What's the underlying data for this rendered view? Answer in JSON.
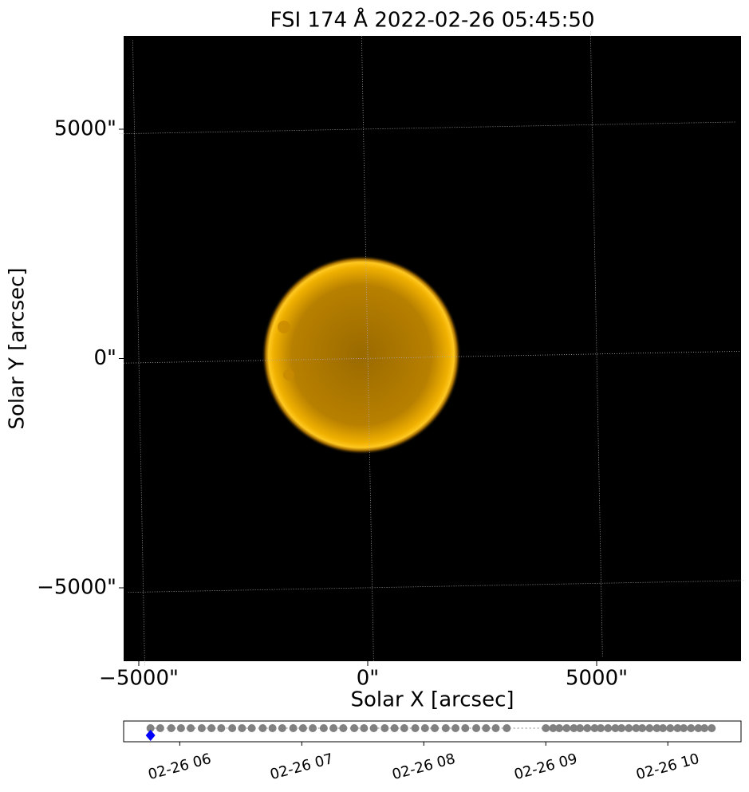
{
  "chart_data": [
    {
      "type": "image",
      "title": "FSI 174 Å 2022-02-26 05:45:50",
      "x_label": "Solar X [arcsec]",
      "y_label": "Solar Y [arcsec]",
      "xlim": [
        -5331,
        8153
      ],
      "ylim": [
        -6600,
        7035
      ],
      "xticks": [
        {
          "value": -5000,
          "label": "−5000\""
        },
        {
          "value": 0,
          "label": "0\""
        },
        {
          "value": 5000,
          "label": "5000\""
        }
      ],
      "yticks": [
        {
          "value": -5000,
          "label": "−5000\""
        },
        {
          "value": 0,
          "label": "0\""
        },
        {
          "value": 5000,
          "label": "5000\""
        }
      ],
      "grid": true
    },
    {
      "type": "scatter",
      "color": "#808080",
      "x": [
        5.76,
        5.84,
        5.93,
        6.01,
        6.09,
        6.18,
        6.26,
        6.34,
        6.43,
        6.51,
        6.59,
        6.68,
        6.76,
        6.84,
        6.93,
        7.01,
        7.09,
        7.18,
        7.26,
        7.34,
        7.43,
        7.51,
        7.59,
        7.68,
        7.76,
        7.84,
        7.93,
        8.01,
        8.09,
        8.18,
        8.26,
        8.34,
        8.43,
        8.51,
        8.59,
        8.68,
        9.0,
        9.06,
        9.11,
        9.17,
        9.23,
        9.28,
        9.34,
        9.4,
        9.45,
        9.51,
        9.57,
        9.62,
        9.68,
        9.74,
        9.79,
        9.85,
        9.91,
        9.96,
        10.02,
        10.08,
        10.13,
        10.19,
        10.25,
        10.3,
        10.36
      ],
      "highlight": {
        "x": 5.76,
        "color": "#0000ff"
      },
      "xlim": [
        5.54,
        10.6
      ],
      "xticks": [
        {
          "value": 6,
          "label": "02-26 06"
        },
        {
          "value": 7,
          "label": "02-26 07"
        },
        {
          "value": 8,
          "label": "02-26 08"
        },
        {
          "value": 9,
          "label": "02-26 09"
        },
        {
          "value": 10,
          "label": "02-26 10"
        }
      ]
    }
  ]
}
